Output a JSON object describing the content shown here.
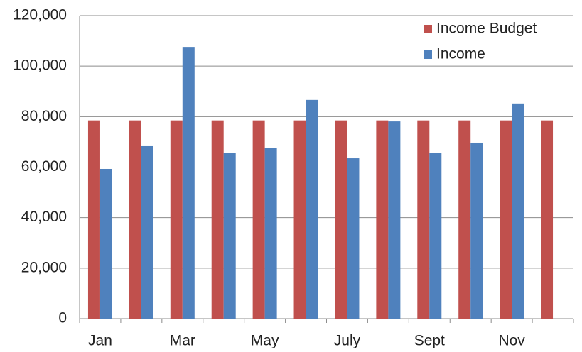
{
  "chart_data": {
    "type": "bar",
    "categories": [
      "Jan",
      null,
      "Mar",
      null,
      "May",
      null,
      "July",
      null,
      "Sept",
      null,
      "Nov",
      null
    ],
    "series": [
      {
        "name": "Income Budget",
        "color": "#c0504d",
        "values": [
          78500,
          78500,
          78500,
          78500,
          78500,
          78500,
          78500,
          78500,
          78500,
          78500,
          78500,
          78500
        ]
      },
      {
        "name": "Income",
        "color": "#4f81bd",
        "values": [
          59300,
          68300,
          107600,
          65500,
          67700,
          86600,
          63500,
          78100,
          65500,
          69700,
          85200,
          null
        ]
      }
    ],
    "ylim": [
      0,
      120000
    ],
    "yticks": [
      0,
      {
        "value": 20000,
        "label": "20,000"
      },
      {
        "value": 40000,
        "label": "40,000"
      },
      {
        "value": 60000,
        "label": "60,000"
      },
      {
        "value": 80000,
        "label": "80,000"
      },
      {
        "value": 100000,
        "label": "100,000"
      },
      {
        "value": 120000,
        "label": "120,000"
      }
    ],
    "grid": true,
    "legend": "top-right"
  }
}
